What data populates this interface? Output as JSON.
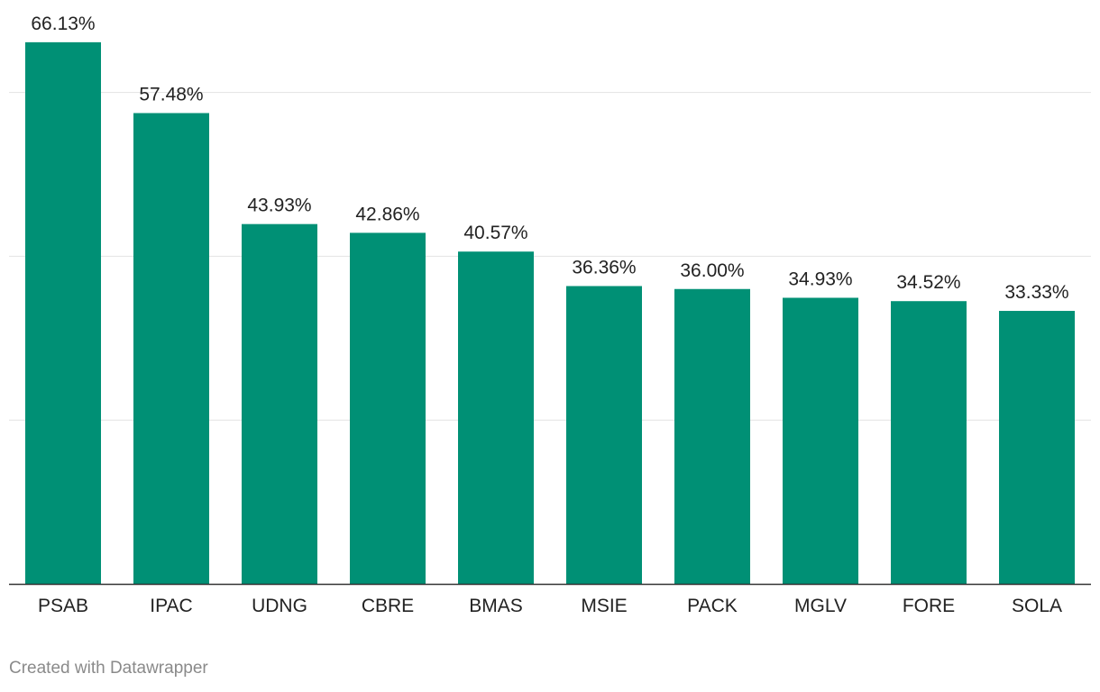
{
  "chart_data": {
    "type": "bar",
    "categories": [
      "PSAB",
      "IPAC",
      "UDNG",
      "CBRE",
      "BMAS",
      "MSIE",
      "PACK",
      "MGLV",
      "FORE",
      "SOLA"
    ],
    "values": [
      66.13,
      57.48,
      43.93,
      42.86,
      40.57,
      36.36,
      36.0,
      34.93,
      34.52,
      33.33
    ],
    "value_labels": [
      "66.13%",
      "57.48%",
      "43.93%",
      "42.86%",
      "40.57%",
      "36.36%",
      "36.00%",
      "34.93%",
      "34.52%",
      "33.33%"
    ],
    "ylim": [
      0,
      60
    ],
    "gridlines": [
      0,
      20,
      40,
      60
    ],
    "grid": true,
    "bar_color": "#009075",
    "legend": "none"
  },
  "credit": "Created with Datawrapper"
}
